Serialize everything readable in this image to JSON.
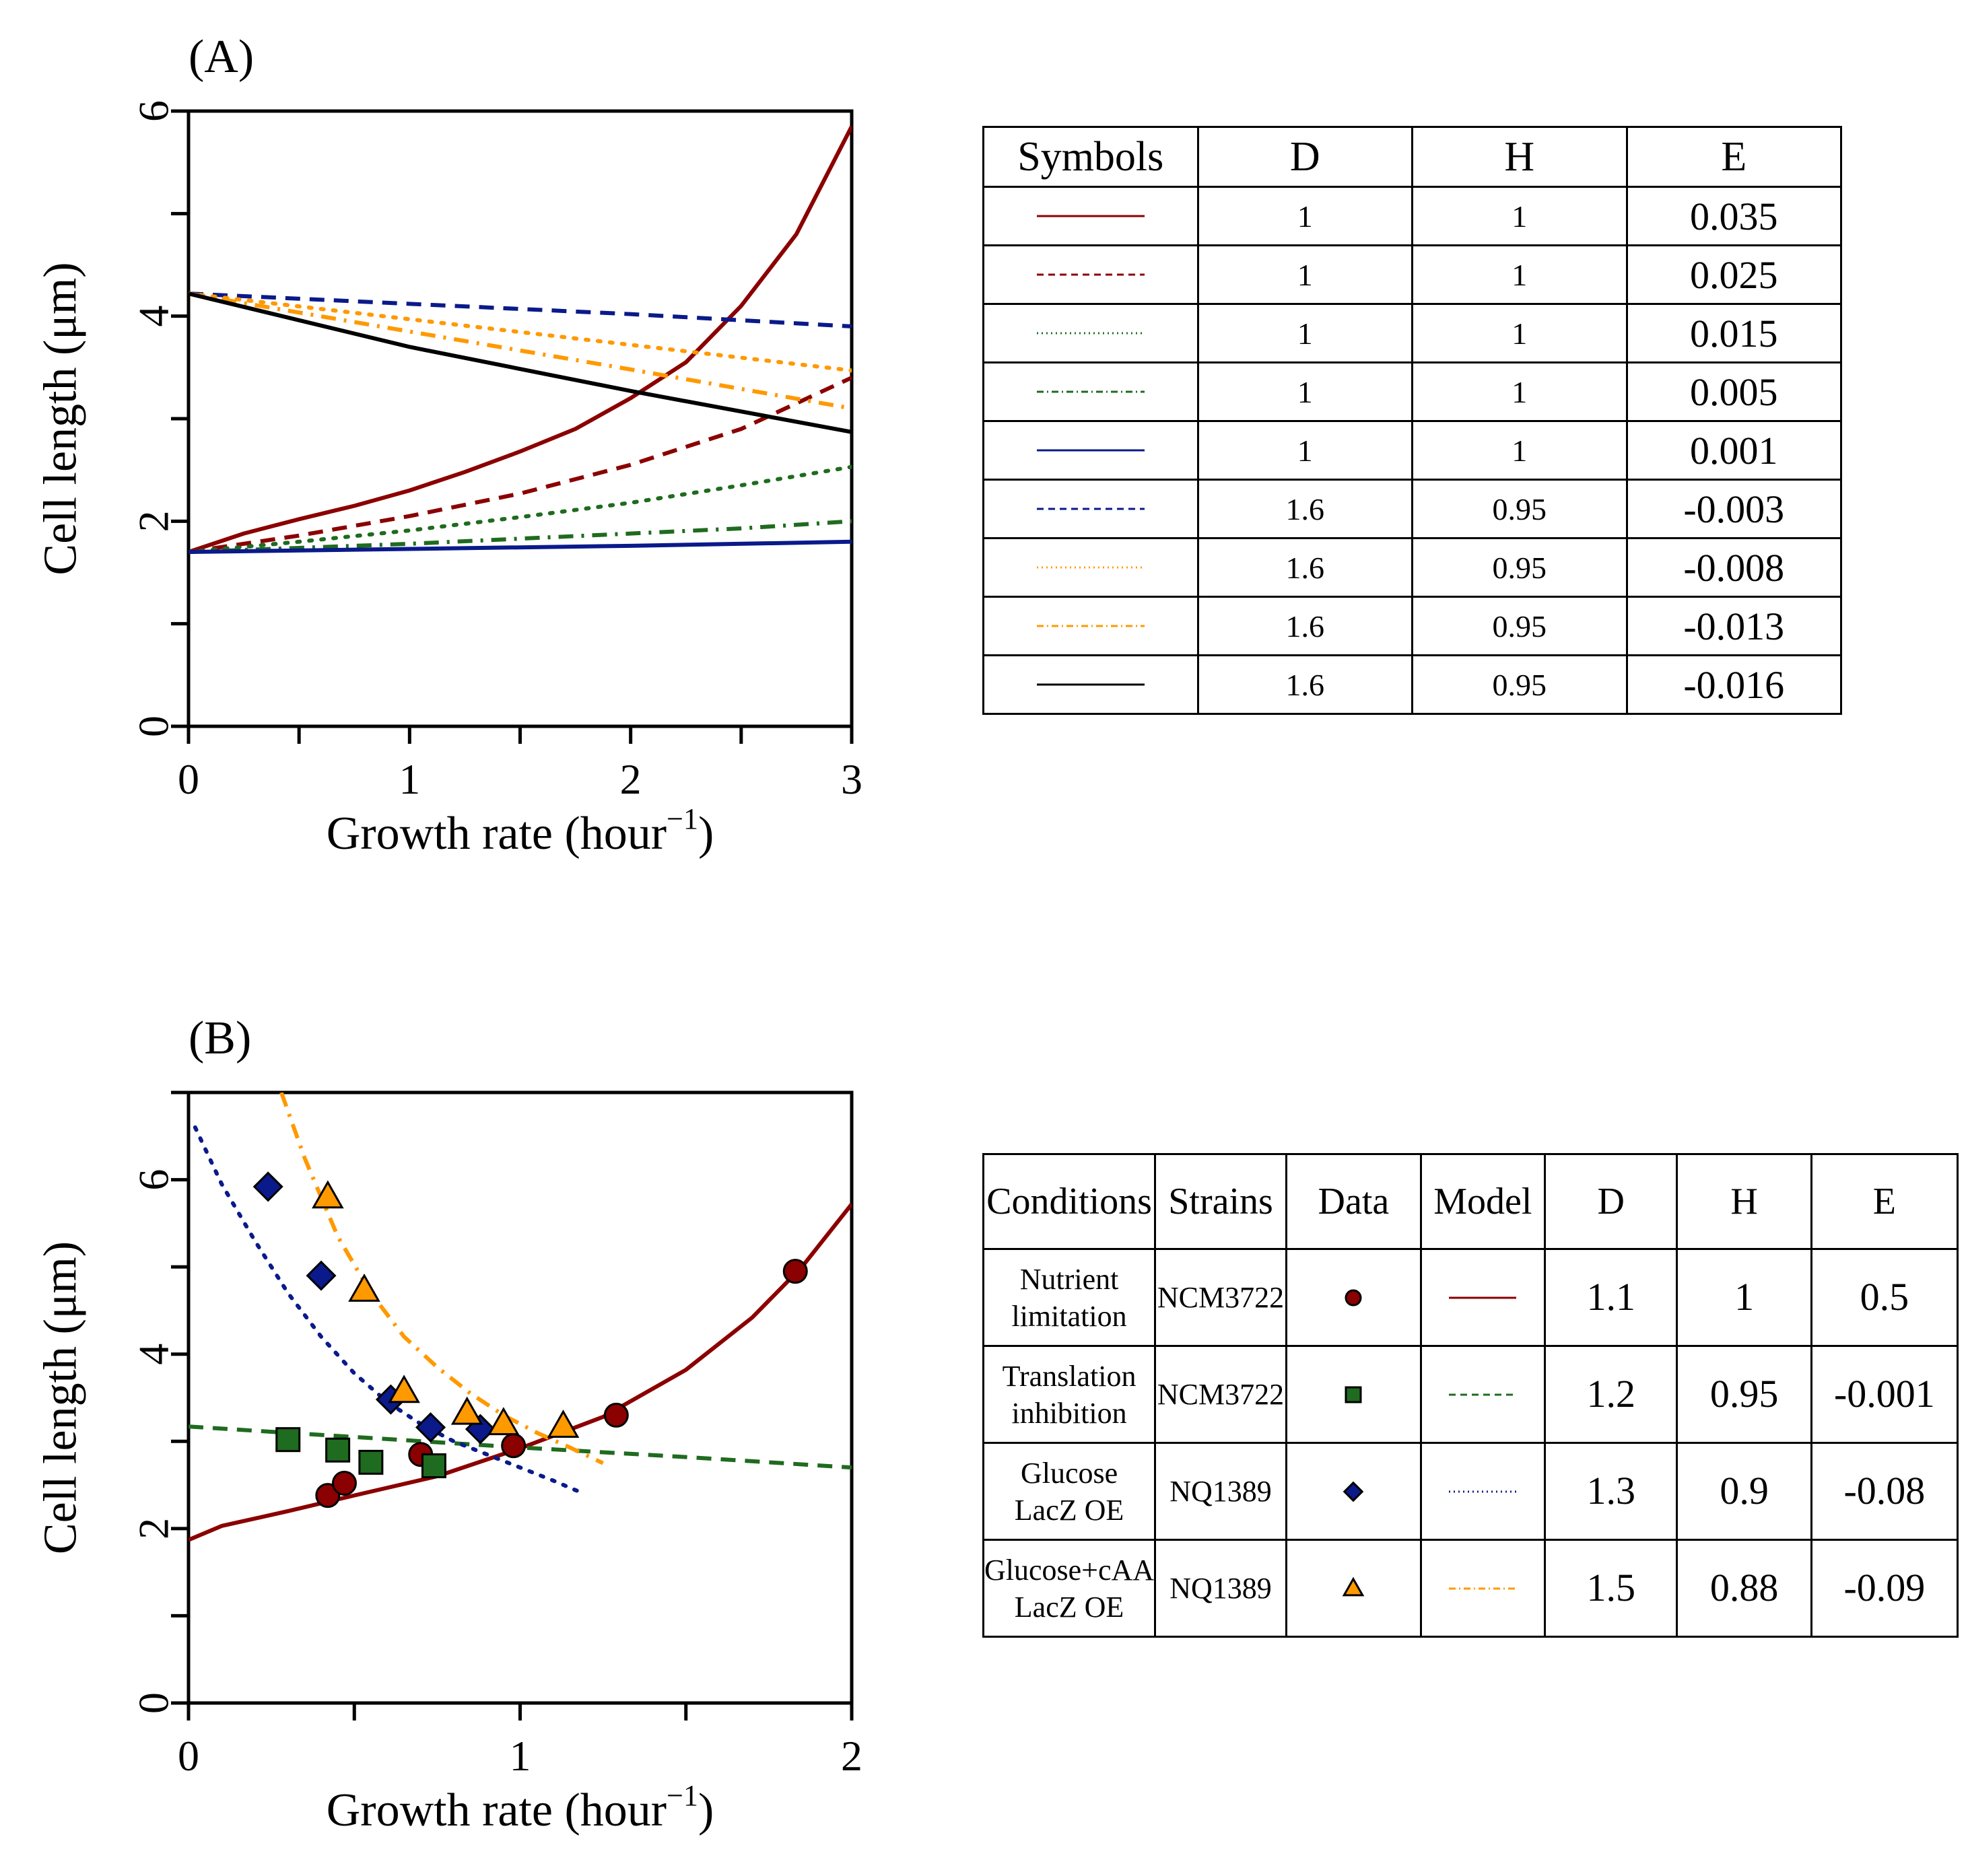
{
  "colors": {
    "dark_red": "#8b0000",
    "dark_green": "#1f6b1f",
    "navy": "#0a1a8a",
    "orange": "#ff9900",
    "black": "#000000"
  },
  "chart_data": [
    {
      "type": "line",
      "panel_label": "(A)",
      "xlabel": "Growth rate (hour",
      "xlabel_sup": "−1",
      "xlabel_close": ")",
      "ylabel": "Cell length (μm)",
      "xlim": [
        0,
        3
      ],
      "ylim": [
        0,
        6
      ],
      "xticks": [
        0,
        1,
        2,
        3
      ],
      "yticks": [
        0,
        2,
        4,
        6
      ],
      "series": [
        {
          "style": "solid",
          "color": "#8b0000",
          "x": [
            0,
            0.25,
            0.5,
            0.75,
            1,
            1.25,
            1.5,
            1.75,
            2,
            2.25,
            2.5,
            2.75,
            3
          ],
          "y": [
            1.7,
            1.88,
            2.02,
            2.15,
            2.3,
            2.48,
            2.68,
            2.9,
            3.2,
            3.55,
            4.1,
            4.8,
            5.85
          ]
        },
        {
          "style": "dashed",
          "color": "#8b0000",
          "x": [
            0,
            0.5,
            1,
            1.5,
            2,
            2.5,
            3
          ],
          "y": [
            1.7,
            1.86,
            2.05,
            2.27,
            2.55,
            2.9,
            3.4
          ]
        },
        {
          "style": "dotted",
          "color": "#1f6b1f",
          "x": [
            0,
            0.5,
            1,
            1.5,
            2,
            2.5,
            3
          ],
          "y": [
            1.7,
            1.8,
            1.91,
            2.04,
            2.18,
            2.35,
            2.53
          ]
        },
        {
          "style": "dashdot",
          "color": "#1f6b1f",
          "x": [
            0,
            0.5,
            1,
            1.5,
            2,
            2.5,
            3
          ],
          "y": [
            1.7,
            1.74,
            1.78,
            1.83,
            1.88,
            1.93,
            2.0
          ]
        },
        {
          "style": "solid",
          "color": "#0a1a8a",
          "x": [
            0,
            1,
            2,
            3
          ],
          "y": [
            1.7,
            1.73,
            1.76,
            1.8
          ]
        },
        {
          "style": "dashed",
          "color": "#0a1a8a",
          "x": [
            0,
            1,
            2,
            3
          ],
          "y": [
            4.22,
            4.12,
            4.02,
            3.9
          ]
        },
        {
          "style": "dotted",
          "color": "#ff9900",
          "x": [
            0,
            1,
            2,
            3
          ],
          "y": [
            4.22,
            3.97,
            3.72,
            3.47
          ]
        },
        {
          "style": "dashdot",
          "color": "#ff9900",
          "x": [
            0,
            1,
            2,
            3
          ],
          "y": [
            4.22,
            3.85,
            3.48,
            3.1
          ]
        },
        {
          "style": "solid",
          "color": "#000000",
          "x": [
            0,
            1,
            2,
            3
          ],
          "y": [
            4.22,
            3.7,
            3.27,
            2.87
          ]
        }
      ]
    },
    {
      "type": "scatter",
      "panel_label": "(B)",
      "xlabel": "Growth rate (hour",
      "xlabel_sup": "−1",
      "xlabel_close": ")",
      "ylabel": "Cell length (μm)",
      "xlim": [
        0,
        2
      ],
      "ylim": [
        0,
        7
      ],
      "xticks": [
        0,
        1,
        2
      ],
      "yticks": [
        0,
        2,
        4,
        6
      ],
      "series": [
        {
          "marker": "circle",
          "color": "#8b0000",
          "x": [
            0.42,
            0.47,
            0.7,
            0.98,
            1.29,
            1.83
          ],
          "y": [
            2.38,
            2.52,
            2.85,
            2.95,
            3.3,
            4.95
          ]
        },
        {
          "marker": "square",
          "color": "#1f6b1f",
          "x": [
            0.3,
            0.45,
            0.55,
            0.74
          ],
          "y": [
            3.02,
            2.9,
            2.76,
            2.72
          ]
        },
        {
          "marker": "diamond",
          "color": "#0a1a8a",
          "x": [
            0.24,
            0.4,
            0.61,
            0.73,
            0.88
          ],
          "y": [
            5.92,
            4.9,
            3.48,
            3.16,
            3.14
          ]
        },
        {
          "marker": "triangle",
          "color": "#ff9900",
          "x": [
            0.42,
            0.53,
            0.65,
            0.84,
            0.95,
            1.13
          ],
          "y": [
            5.8,
            4.73,
            3.57,
            3.32,
            3.2,
            3.17
          ]
        }
      ],
      "model_lines": [
        {
          "style": "solid",
          "color": "#8b0000",
          "x": [
            0,
            0.1,
            0.3,
            0.5,
            0.75,
            1.0,
            1.25,
            1.5,
            1.7,
            1.85,
            2.0
          ],
          "y": [
            1.87,
            2.03,
            2.2,
            2.38,
            2.6,
            2.92,
            3.28,
            3.82,
            4.42,
            5.0,
            5.72
          ]
        },
        {
          "style": "dashed",
          "color": "#1f6b1f",
          "x": [
            0,
            0.5,
            1,
            1.5,
            2
          ],
          "y": [
            3.17,
            3.05,
            2.93,
            2.82,
            2.7
          ]
        },
        {
          "style": "dotted",
          "color": "#0a1a8a",
          "x": [
            0.02,
            0.1,
            0.2,
            0.3,
            0.4,
            0.5,
            0.6,
            0.7,
            0.8,
            0.9,
            1.0,
            1.1,
            1.18
          ],
          "y": [
            6.6,
            5.95,
            5.3,
            4.7,
            4.2,
            3.78,
            3.45,
            3.2,
            3.0,
            2.85,
            2.7,
            2.55,
            2.42
          ]
        },
        {
          "style": "dashdot",
          "color": "#ff9900",
          "x": [
            0.28,
            0.35,
            0.45,
            0.55,
            0.65,
            0.75,
            0.85,
            0.95,
            1.05,
            1.15,
            1.25
          ],
          "y": [
            7.0,
            6.25,
            5.35,
            4.7,
            4.2,
            3.85,
            3.55,
            3.3,
            3.1,
            2.93,
            2.75
          ]
        }
      ]
    }
  ],
  "tableA": {
    "headers": [
      "Symbols",
      "D",
      "H",
      "E"
    ],
    "rows": [
      {
        "style": "solid",
        "color": "#8b0000",
        "D": "1",
        "H": "1",
        "E": "0.035"
      },
      {
        "style": "dashed",
        "color": "#8b0000",
        "D": "1",
        "H": "1",
        "E": "0.025"
      },
      {
        "style": "dotted",
        "color": "#1f6b1f",
        "D": "1",
        "H": "1",
        "E": "0.015"
      },
      {
        "style": "dashdot",
        "color": "#1f6b1f",
        "D": "1",
        "H": "1",
        "E": "0.005"
      },
      {
        "style": "solid",
        "color": "#0a1a8a",
        "D": "1",
        "H": "1",
        "E": "0.001"
      },
      {
        "style": "dashed",
        "color": "#0a1a8a",
        "D": "1.6",
        "H": "0.95",
        "E": "-0.003"
      },
      {
        "style": "dotted",
        "color": "#ff9900",
        "D": "1.6",
        "H": "0.95",
        "E": "-0.008"
      },
      {
        "style": "dashdot",
        "color": "#ff9900",
        "D": "1.6",
        "H": "0.95",
        "E": "-0.013"
      },
      {
        "style": "solid",
        "color": "#000000",
        "D": "1.6",
        "H": "0.95",
        "E": "-0.016"
      }
    ]
  },
  "tableB": {
    "headers": [
      "Conditions",
      "Strains",
      "Data",
      "Model",
      "D",
      "H",
      "E"
    ],
    "rows": [
      {
        "cond1": "Nutrient",
        "cond2": "limitation",
        "strain": "NCM3722",
        "marker": "circle",
        "style": "solid",
        "color": "#8b0000",
        "D": "1.1",
        "H": "1",
        "E": "0.5"
      },
      {
        "cond1": "Translation",
        "cond2": "inhibition",
        "strain": "NCM3722",
        "marker": "square",
        "style": "dashed",
        "color": "#1f6b1f",
        "D": "1.2",
        "H": "0.95",
        "E": "-0.001"
      },
      {
        "cond1": "Glucose",
        "cond2": "LacZ OE",
        "strain": "NQ1389",
        "marker": "diamond",
        "style": "dotted",
        "color": "#0a1a8a",
        "D": "1.3",
        "H": "0.9",
        "E": "-0.08"
      },
      {
        "cond1": "Glucose+cAA",
        "cond2": "LacZ OE",
        "strain": "NQ1389",
        "marker": "triangle",
        "style": "dashdot",
        "color": "#ff9900",
        "D": "1.5",
        "H": "0.88",
        "E": "-0.09"
      }
    ]
  }
}
